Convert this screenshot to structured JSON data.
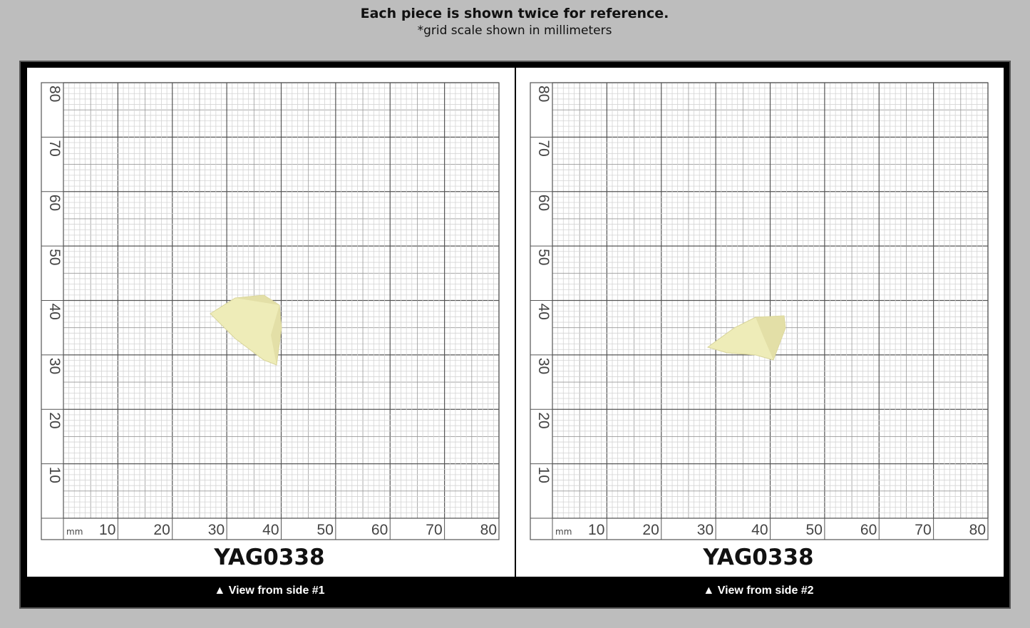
{
  "header": {
    "title": "Each piece is shown twice for reference.",
    "subtitle": "*grid scale shown in millimeters"
  },
  "panels": [
    {
      "x_labels": [
        "10",
        "20",
        "30",
        "40",
        "50",
        "60",
        "70",
        "80"
      ],
      "y_labels": [
        "10",
        "20",
        "30",
        "40",
        "50",
        "60",
        "70",
        "80"
      ],
      "unit": "mm",
      "code": "YAG0338",
      "caption": "▲ View from side #1"
    },
    {
      "x_labels": [
        "10",
        "20",
        "30",
        "40",
        "50",
        "60",
        "70",
        "80"
      ],
      "y_labels": [
        "10",
        "20",
        "30",
        "40",
        "50",
        "60",
        "70",
        "80"
      ],
      "unit": "mm",
      "code": "YAG0338",
      "caption": "▲ View from side #2"
    }
  ]
}
